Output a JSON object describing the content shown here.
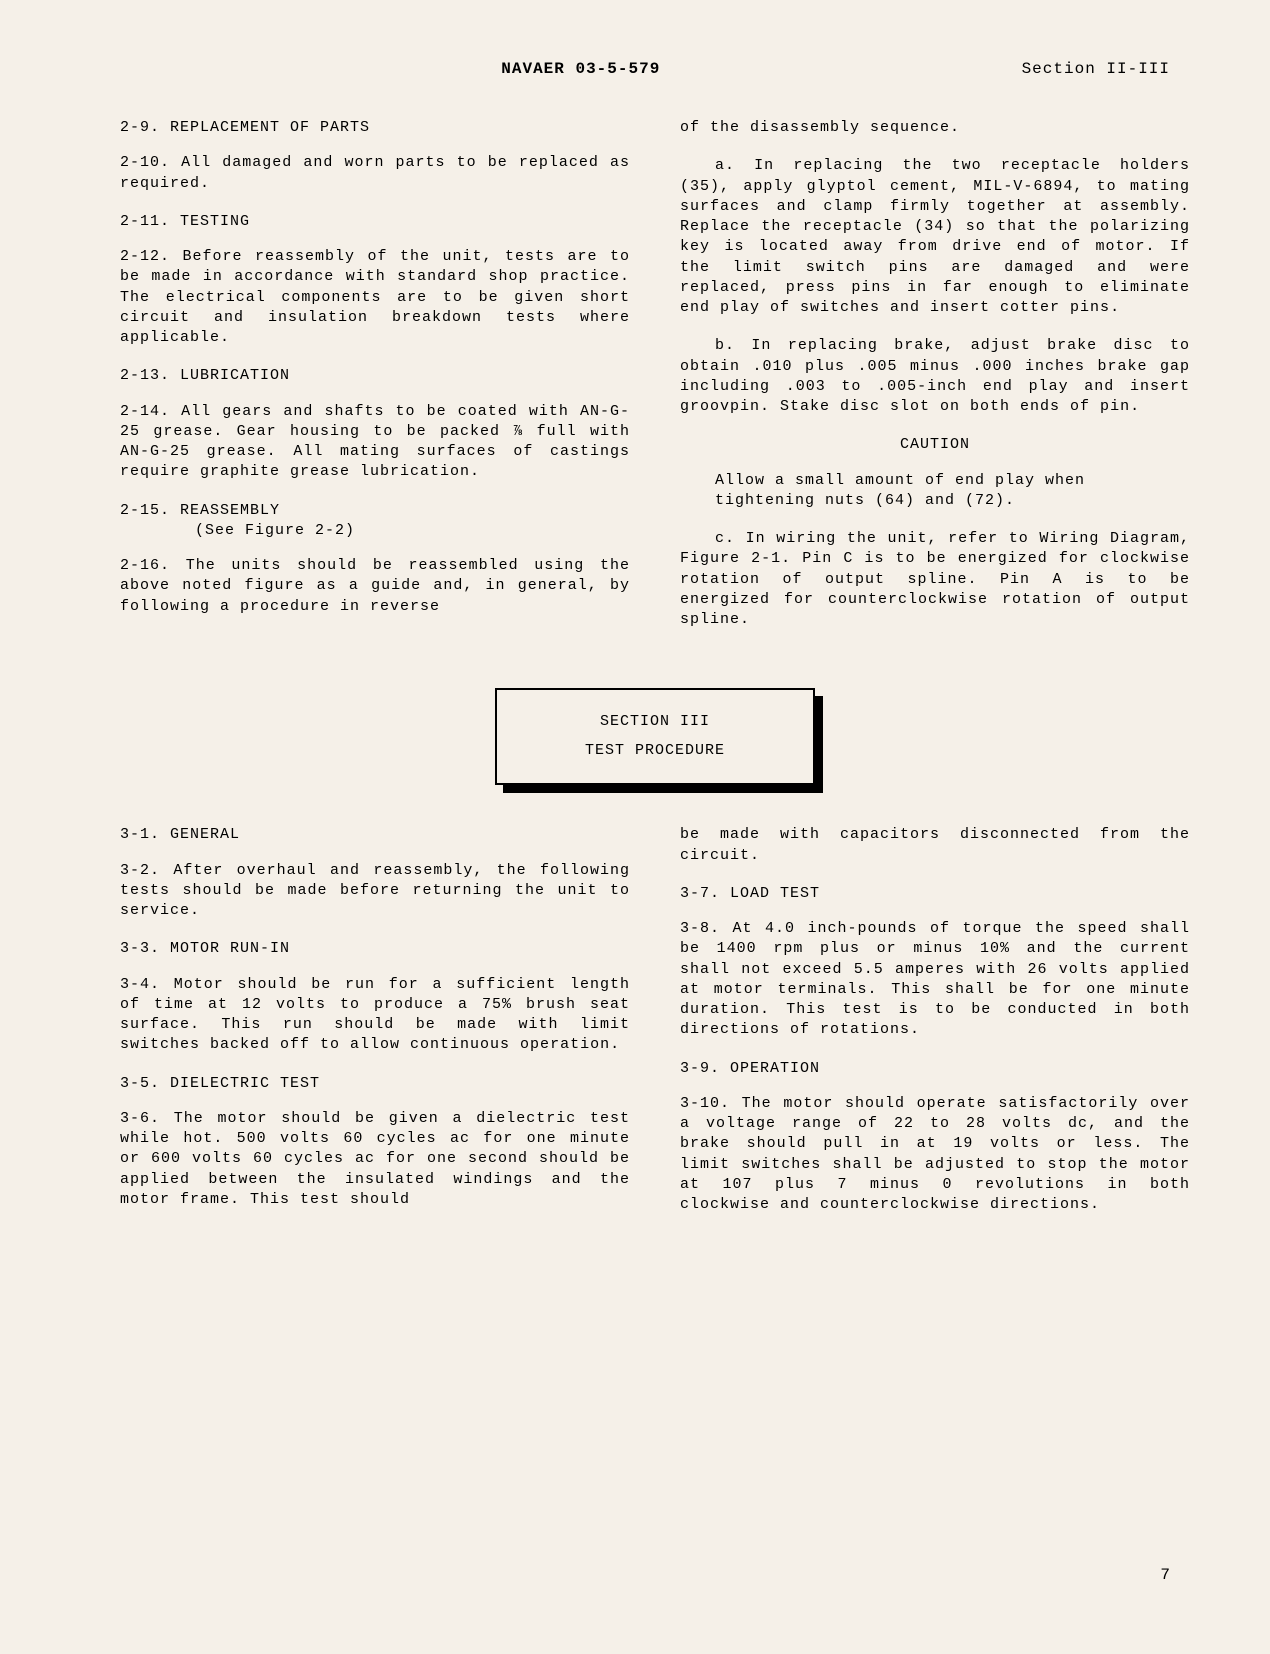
{
  "header": {
    "doc_id": "NAVAER 03-5-579",
    "section": "Section II-III"
  },
  "col_left_upper": {
    "h1": "2-9.  REPLACEMENT OF PARTS",
    "p1": "2-10.  All damaged and worn parts to be replaced as required.",
    "h2": "2-11.  TESTING",
    "p2": "2-12.  Before reassembly of the unit, tests are to be made in accordance with standard shop practice.  The electrical components are to be given short circuit and insulation breakdown tests where applicable.",
    "h3": "2-13.  LUBRICATION",
    "p3": "2-14.  All gears and shafts to be coated with AN-G-25 grease.  Gear housing to be packed ⅞ full with AN-G-25 grease. All mating surfaces of castings require graphite grease lubrication.",
    "h4": "2-15.  REASSEMBLY",
    "h4sub": "(See Figure 2-2)",
    "p4": "2-16.  The units should be reassembled using the above noted figure as a guide and, in general, by following a procedure in reverse"
  },
  "col_right_upper": {
    "p1": "of the disassembly sequence.",
    "p2": "a.  In replacing the two receptacle holders (35), apply glyptol cement, MIL-V-6894, to mating surfaces and clamp firmly together at assembly. Replace the receptacle (34) so that the polarizing key is located away from drive end of motor.  If the limit switch pins are damaged and were replaced, press pins in far enough to eliminate end play of switches and insert cotter pins.",
    "p3": "b.  In replacing brake, adjust brake disc to obtain .010 plus .005 minus .000 inches brake gap including .003 to .005-inch end play and insert groovpin.  Stake disc slot on both ends of pin.",
    "caution_h": "CAUTION",
    "caution_b": "Allow a small amount of end play when tightening nuts (64) and (72).",
    "p4": "c.  In wiring the unit, refer to Wiring Diagram, Figure 2-1. Pin C is to be energized for clockwise rotation of output spline.  Pin A is to be energized for counterclockwise rotation of output spline."
  },
  "section_box": {
    "line1": "SECTION III",
    "line2": "TEST PROCEDURE"
  },
  "col_left_lower": {
    "h1": "3-1.  GENERAL",
    "p1": "3-2.  After overhaul and reassembly, the following tests should be made before returning the unit to service.",
    "h2": "3-3.  MOTOR RUN-IN",
    "p2": "3-4.  Motor should be run for a sufficient length of time at 12 volts to produce a 75% brush seat surface.  This run should be made with limit switches backed off to allow continuous operation.",
    "h3": "3-5.  DIELECTRIC TEST",
    "p3": "3-6.  The motor should be given a dielectric test while hot.  500 volts 60 cycles ac for one minute or 600 volts 60 cycles ac for one second should be applied between the insulated windings and the motor frame. This test should"
  },
  "col_right_lower": {
    "p1": "be made with capacitors disconnected from the circuit.",
    "h1": "3-7.  LOAD TEST",
    "p2": "3-8.  At 4.0 inch-pounds of torque the speed shall be 1400 rpm plus or minus 10% and the current shall not exceed 5.5 amperes with 26 volts applied at motor terminals.  This shall be for one minute duration.  This test is to be conducted in both directions of rotations.",
    "h2": "3-9.  OPERATION",
    "p3": "3-10. The motor should operate satisfactorily over a voltage range of 22 to 28 volts dc, and the brake should pull in at 19 volts or less.  The limit switches shall be adjusted to stop the motor at 107 plus 7 minus 0 revolutions in both clockwise and counterclockwise directions."
  },
  "page_number": "7"
}
